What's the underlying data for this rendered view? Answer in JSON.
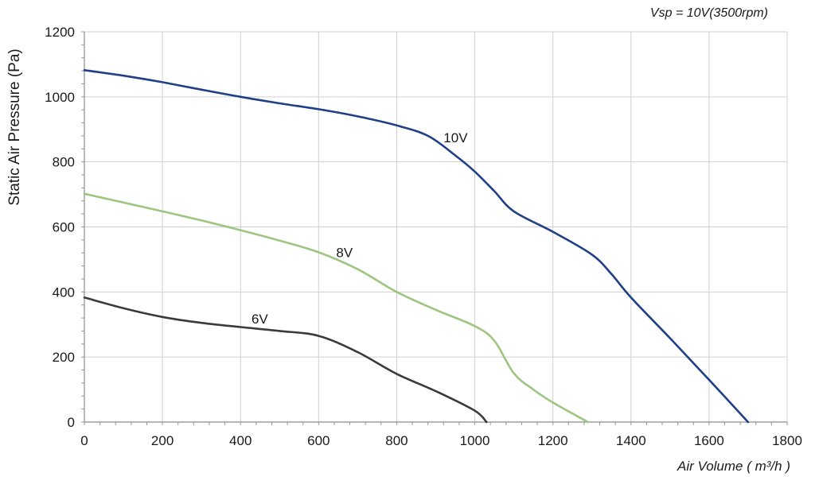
{
  "chart_data": {
    "type": "line",
    "title": "",
    "annotation": "Vsp = 10V(3500rpm)",
    "xlabel": "Air Volume ( m³/h )",
    "ylabel": "Static Air Pressure  (Pa)",
    "xlim": [
      0,
      1800
    ],
    "ylim": [
      0,
      1200
    ],
    "xticks": [
      0,
      200,
      400,
      600,
      800,
      1000,
      1200,
      1400,
      1600,
      1800
    ],
    "yticks": [
      0,
      200,
      400,
      600,
      800,
      1000,
      1200
    ],
    "grid": true,
    "series": [
      {
        "name": "10V",
        "color": "#1f3f87",
        "points": [
          [
            0,
            1082
          ],
          [
            100,
            1065
          ],
          [
            200,
            1045
          ],
          [
            300,
            1022
          ],
          [
            400,
            1000
          ],
          [
            500,
            980
          ],
          [
            600,
            962
          ],
          [
            700,
            940
          ],
          [
            800,
            912
          ],
          [
            880,
            880
          ],
          [
            950,
            820
          ],
          [
            1000,
            770
          ],
          [
            1050,
            710
          ],
          [
            1100,
            648
          ],
          [
            1200,
            585
          ],
          [
            1300,
            515
          ],
          [
            1350,
            455
          ],
          [
            1400,
            383
          ],
          [
            1500,
            258
          ],
          [
            1600,
            130
          ],
          [
            1700,
            0
          ]
        ],
        "label_at": [
          920,
          875
        ]
      },
      {
        "name": "8V",
        "color": "#9dc681",
        "points": [
          [
            0,
            702
          ],
          [
            100,
            675
          ],
          [
            200,
            648
          ],
          [
            300,
            620
          ],
          [
            400,
            590
          ],
          [
            500,
            558
          ],
          [
            600,
            522
          ],
          [
            700,
            470
          ],
          [
            800,
            400
          ],
          [
            900,
            345
          ],
          [
            1000,
            295
          ],
          [
            1050,
            250
          ],
          [
            1100,
            150
          ],
          [
            1150,
            100
          ],
          [
            1200,
            60
          ],
          [
            1290,
            0
          ]
        ],
        "label_at": [
          645,
          522
        ]
      },
      {
        "name": "6V",
        "color": "#3a3a3a",
        "points": [
          [
            0,
            383
          ],
          [
            100,
            350
          ],
          [
            200,
            323
          ],
          [
            300,
            305
          ],
          [
            400,
            292
          ],
          [
            500,
            280
          ],
          [
            600,
            265
          ],
          [
            700,
            215
          ],
          [
            800,
            148
          ],
          [
            900,
            95
          ],
          [
            1000,
            35
          ],
          [
            1030,
            0
          ]
        ],
        "label_at": [
          428,
          318
        ]
      }
    ]
  }
}
